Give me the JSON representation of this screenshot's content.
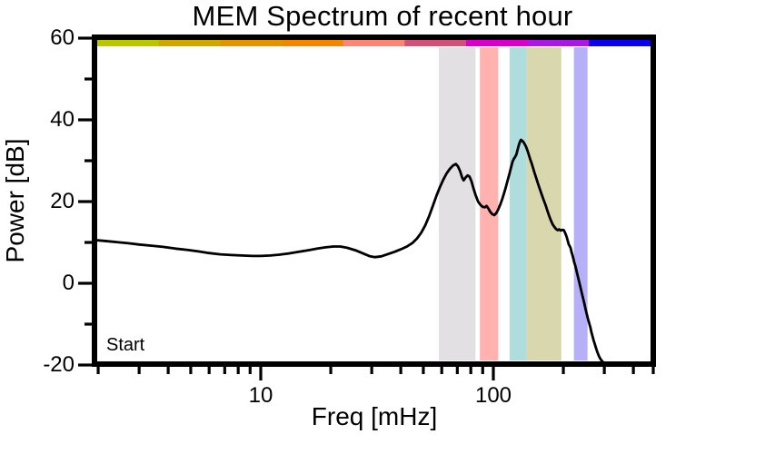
{
  "title": "MEM Spectrum of recent hour",
  "start_label": "Start",
  "axes": {
    "xlabel": "Freq [mHz]",
    "ylabel": "Power [dB]",
    "x_scale": "log",
    "xlim_mhz": [
      1.91,
      500
    ],
    "ylim_db": [
      -20,
      60
    ]
  },
  "ticks": {
    "y_labels": [
      "60",
      "40",
      "20",
      "0",
      "-20"
    ],
    "y_major_values": [
      60,
      40,
      20,
      0,
      -20
    ],
    "y_minor_values": [
      50,
      30,
      10,
      -10
    ],
    "x_labels": [
      "10",
      "100"
    ],
    "x_major_values": [
      10,
      100
    ],
    "x_minor_values": [
      2,
      3,
      4,
      5,
      6,
      7,
      8,
      9,
      20,
      30,
      40,
      50,
      60,
      70,
      80,
      90,
      200,
      300,
      400,
      500
    ]
  },
  "top_bar_segments": [
    {
      "name": "chartreuse",
      "color": "#bcc600"
    },
    {
      "name": "gold",
      "color": "#cda900"
    },
    {
      "name": "amber",
      "color": "#e19300"
    },
    {
      "name": "orange",
      "color": "#ef8700"
    },
    {
      "name": "salmon",
      "color": "#fa8578"
    },
    {
      "name": "rose",
      "color": "#d05278"
    },
    {
      "name": "magenta",
      "color": "#d800c8"
    },
    {
      "name": "violet",
      "color": "#a81ae0"
    },
    {
      "name": "blue",
      "color": "#0b00ee"
    }
  ],
  "bands": [
    {
      "name": "grey-band",
      "color": "#e2e0e2",
      "from_mhz": 58.3,
      "to_mhz": 83.8
    },
    {
      "name": "pink-band",
      "color": "#ffb2b0",
      "from_mhz": 87.5,
      "to_mhz": 105
    },
    {
      "name": "teal-band",
      "color": "#afdcdc",
      "from_mhz": 117.5,
      "to_mhz": 139
    },
    {
      "name": "khaki-band",
      "color": "#d9d7ad",
      "from_mhz": 139,
      "to_mhz": 196
    },
    {
      "name": "lavender-band",
      "color": "#b6b0f8",
      "from_mhz": 222,
      "to_mhz": 254
    }
  ],
  "chart_data": {
    "type": "line",
    "title": "MEM Spectrum of recent hour",
    "xlabel": "Freq [mHz]",
    "ylabel": "Power [dB]",
    "x_scale": "log",
    "xlim": [
      1.91,
      500
    ],
    "ylim": [
      -20,
      60
    ],
    "grid": false,
    "legend": "none",
    "annotations": [
      "Start"
    ],
    "series": [
      {
        "name": "MEM power spectrum",
        "color": "#000000",
        "points": [
          [
            1.91,
            10.6
          ],
          [
            2.1,
            10.4
          ],
          [
            2.4,
            10.1
          ],
          [
            2.7,
            9.8
          ],
          [
            3.0,
            9.5
          ],
          [
            3.4,
            9.2
          ],
          [
            3.8,
            8.9
          ],
          [
            4.3,
            8.5
          ],
          [
            4.8,
            8.2
          ],
          [
            5.4,
            7.8
          ],
          [
            6.0,
            7.4
          ],
          [
            6.7,
            7.1
          ],
          [
            7.5,
            6.9
          ],
          [
            8.3,
            6.8
          ],
          [
            9.2,
            6.7
          ],
          [
            10.0,
            6.7
          ],
          [
            11.0,
            6.8
          ],
          [
            12.0,
            7.0
          ],
          [
            13.2,
            7.3
          ],
          [
            14.5,
            7.7
          ],
          [
            16.0,
            8.1
          ],
          [
            17.5,
            8.5
          ],
          [
            19.0,
            8.8
          ],
          [
            20.5,
            9.0
          ],
          [
            22.0,
            9.0
          ],
          [
            23.5,
            8.7
          ],
          [
            25.5,
            8.1
          ],
          [
            27.5,
            7.3
          ],
          [
            29.5,
            6.6
          ],
          [
            31.0,
            6.4
          ],
          [
            33.0,
            6.6
          ],
          [
            35.0,
            7.1
          ],
          [
            37.5,
            7.7
          ],
          [
            40.0,
            8.3
          ],
          [
            42.5,
            9.0
          ],
          [
            45.0,
            9.9
          ],
          [
            47.0,
            11.0
          ],
          [
            49.0,
            12.4
          ],
          [
            51.0,
            14.2
          ],
          [
            53.0,
            16.5
          ],
          [
            55.0,
            19.0
          ],
          [
            57.0,
            21.5
          ],
          [
            59.0,
            23.6
          ],
          [
            61.0,
            25.4
          ],
          [
            63.0,
            26.9
          ],
          [
            65.0,
            28.0
          ],
          [
            67.0,
            28.8
          ],
          [
            69.0,
            29.2
          ],
          [
            70.5,
            28.6
          ],
          [
            72.0,
            27.4
          ],
          [
            73.5,
            25.8
          ],
          [
            74.5,
            25.2
          ],
          [
            76.0,
            25.9
          ],
          [
            77.5,
            26.4
          ],
          [
            79.0,
            26.1
          ],
          [
            80.5,
            25.0
          ],
          [
            82.0,
            23.4
          ],
          [
            84.0,
            21.5
          ],
          [
            86.0,
            20.0
          ],
          [
            88.0,
            19.2
          ],
          [
            90.0,
            18.7
          ],
          [
            92.0,
            18.6
          ],
          [
            93.5,
            18.9
          ],
          [
            95.0,
            18.4
          ],
          [
            97.0,
            17.5
          ],
          [
            99.0,
            16.9
          ],
          [
            101.0,
            16.7
          ],
          [
            103.0,
            17.2
          ],
          [
            105.0,
            18.1
          ],
          [
            107.0,
            19.2
          ],
          [
            109.0,
            20.5
          ],
          [
            111.0,
            21.9
          ],
          [
            113.0,
            23.4
          ],
          [
            115.0,
            25.0
          ],
          [
            117.0,
            26.6
          ],
          [
            119.0,
            28.2
          ],
          [
            121.0,
            29.8
          ],
          [
            122.5,
            30.5
          ],
          [
            124.0,
            30.9
          ],
          [
            125.5,
            31.5
          ],
          [
            127.0,
            32.6
          ],
          [
            128.5,
            33.7
          ],
          [
            130.0,
            34.6
          ],
          [
            131.5,
            35.1
          ],
          [
            133.0,
            34.9
          ],
          [
            134.5,
            34.6
          ],
          [
            136.0,
            34.2
          ],
          [
            138.0,
            33.5
          ],
          [
            140.0,
            32.6
          ],
          [
            142.0,
            31.5
          ],
          [
            144.0,
            30.4
          ],
          [
            146.0,
            29.4
          ],
          [
            148.0,
            28.3
          ],
          [
            150.0,
            27.2
          ],
          [
            153.0,
            25.7
          ],
          [
            156.0,
            24.2
          ],
          [
            159.0,
            22.8
          ],
          [
            162.0,
            21.5
          ],
          [
            165.0,
            20.2
          ],
          [
            168.0,
            19.0
          ],
          [
            171.0,
            17.7
          ],
          [
            174.0,
            16.4
          ],
          [
            177.0,
            15.3
          ],
          [
            180.0,
            14.4
          ],
          [
            183.0,
            13.8
          ],
          [
            186.0,
            13.3
          ],
          [
            189.0,
            13.0
          ],
          [
            192.0,
            13.2
          ],
          [
            195.0,
            12.9
          ],
          [
            198.0,
            13.1
          ],
          [
            201.0,
            13.0
          ],
          [
            203.0,
            12.5
          ],
          [
            205.0,
            11.9
          ],
          [
            207.0,
            11.2
          ],
          [
            209.0,
            10.3
          ],
          [
            211.0,
            9.5
          ],
          [
            213.0,
            9.1
          ],
          [
            215.0,
            8.6
          ],
          [
            217.0,
            7.6
          ],
          [
            219.0,
            6.8
          ],
          [
            221.0,
            5.9
          ],
          [
            223.0,
            5.0
          ],
          [
            225.0,
            4.3
          ],
          [
            228.0,
            3.0
          ],
          [
            231.0,
            1.6
          ],
          [
            234.0,
            0.3
          ],
          [
            237.0,
            -1.0
          ],
          [
            240.0,
            -2.3
          ],
          [
            243.0,
            -3.6
          ],
          [
            246.0,
            -4.9
          ],
          [
            249.0,
            -6.2
          ],
          [
            252.0,
            -7.5
          ],
          [
            255.0,
            -8.7
          ],
          [
            258.0,
            -9.7
          ],
          [
            261.0,
            -10.7
          ],
          [
            264.0,
            -11.9
          ],
          [
            267.0,
            -13.0
          ],
          [
            270.0,
            -14.0
          ],
          [
            273.0,
            -14.9
          ],
          [
            276.0,
            -15.8
          ],
          [
            279.0,
            -16.6
          ],
          [
            282.0,
            -17.3
          ],
          [
            285.0,
            -17.9
          ],
          [
            288.0,
            -18.4
          ],
          [
            291.0,
            -18.8
          ],
          [
            294.0,
            -19.1
          ],
          [
            297.0,
            -19.4
          ],
          [
            300.0,
            -19.7
          ],
          [
            304.0,
            -20.1
          ],
          [
            308.0,
            -20.6
          ]
        ]
      }
    ]
  }
}
